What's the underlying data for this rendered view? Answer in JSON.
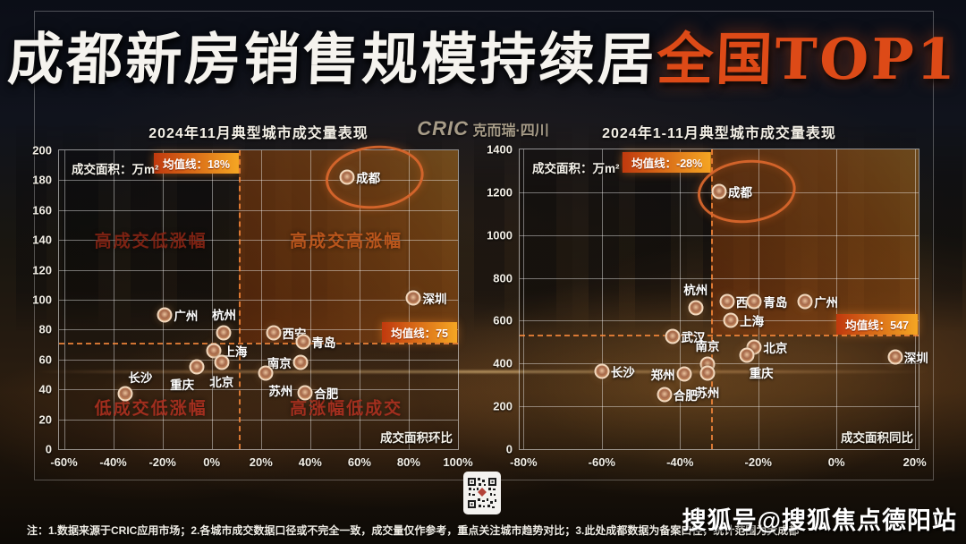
{
  "page": {
    "title_white": "成都新房销售规模持续居",
    "title_orange": "全国TOP1"
  },
  "logo": {
    "brand": "CRIC",
    "name": "克而瑞·四川"
  },
  "footer": {
    "note": "注：1.数据来源于CRIC应用市场；2.各城市成交数据口径或不完全一致，成交量仅作参考，重点关注城市趋势对比；3.此处成都数据为备案口径，统计范围为大成都",
    "watermark": "搜狐号@搜狐焦点德阳站"
  },
  "colors": {
    "title_orange": "#dd4a17",
    "badge_gradient_start": "#c0390e",
    "badge_gradient_end": "#f5a623",
    "mean_line": "#ff8c3c",
    "marker_ring": "#f2d8bd",
    "quadrant_dark_red": "#8a2413",
    "quadrant_orange": "#c65a1d",
    "quadrant_red": "#b03020"
  },
  "chart_data": [
    {
      "type": "scatter",
      "title": "2024年11月典型城市成交量表现",
      "unit_label": "成交面积：万m²",
      "xlabel": "成交面积环比",
      "ylabel": "成交面积（万m²）",
      "xlim": [
        -62,
        100
      ],
      "ylim": [
        0,
        200
      ],
      "x_ticks": [
        -60,
        -40,
        -20,
        0,
        20,
        40,
        60,
        80,
        100
      ],
      "y_ticks": [
        0,
        20,
        40,
        60,
        80,
        100,
        120,
        140,
        160,
        180,
        200
      ],
      "grid": true,
      "legend": "none",
      "mean_v": {
        "label": "均值线：18%",
        "x": 11
      },
      "mean_h": {
        "label": "均值线：75",
        "y": 71
      },
      "quadrants": [
        {
          "text": "高成交低涨幅",
          "left": 23,
          "top": 30,
          "color": "#8a2413"
        },
        {
          "text": "高成交高涨幅",
          "left": 72,
          "top": 30,
          "color": "#c65a1d"
        },
        {
          "text": "低成交低涨幅",
          "left": 23,
          "top": 86,
          "color": "#b03020"
        },
        {
          "text": "高涨幅低成交",
          "left": 72,
          "top": 86,
          "color": "#b03020"
        }
      ],
      "points": [
        {
          "city": "成都",
          "x": 55,
          "y": 182,
          "label_pos": "r",
          "circled": true
        },
        {
          "city": "深圳",
          "x": 82,
          "y": 101,
          "label_pos": "r"
        },
        {
          "city": "广州",
          "x": -19,
          "y": 90,
          "label_pos": "r"
        },
        {
          "city": "杭州",
          "x": 5,
          "y": 78,
          "label_pos": "t"
        },
        {
          "city": "西安",
          "x": 25,
          "y": 78,
          "label_pos": "r"
        },
        {
          "city": "青岛",
          "x": 37,
          "y": 72,
          "label_pos": "r"
        },
        {
          "city": "上海",
          "x": 1,
          "y": 66,
          "label_pos": "r"
        },
        {
          "city": "北京",
          "x": 4,
          "y": 58,
          "label_pos": "b"
        },
        {
          "city": "南京",
          "x": 36,
          "y": 58,
          "label_pos": "l"
        },
        {
          "city": "重庆",
          "x": -6,
          "y": 55,
          "label_pos": "bl"
        },
        {
          "city": "苏州",
          "x": 22,
          "y": 51,
          "label_pos": "br"
        },
        {
          "city": "合肥",
          "x": 38,
          "y": 38,
          "label_pos": "r"
        },
        {
          "city": "长沙",
          "x": -35,
          "y": 37,
          "label_pos": "tr"
        }
      ]
    },
    {
      "type": "scatter",
      "title": "2024年1-11月典型城市成交量表现",
      "unit_label": "成交面积：万m²",
      "xlabel": "成交面积同比",
      "ylabel": "成交面积（万m²）",
      "xlim": [
        -81,
        21
      ],
      "ylim": [
        0,
        1400
      ],
      "x_ticks": [
        -80,
        -60,
        -40,
        -20,
        0,
        20
      ],
      "y_ticks": [
        0,
        200,
        400,
        600,
        800,
        1000,
        1200,
        1400
      ],
      "grid": true,
      "legend": "none",
      "mean_v": {
        "label": "均值线：-28%",
        "x": -32
      },
      "mean_h": {
        "label": "均值线：547",
        "y": 533
      },
      "quadrants": [],
      "points": [
        {
          "city": "成都",
          "x": -30,
          "y": 1205,
          "label_pos": "r",
          "circled": true
        },
        {
          "city": "西安",
          "x": -28,
          "y": 690,
          "label_pos": "r"
        },
        {
          "city": "青岛",
          "x": -21,
          "y": 690,
          "label_pos": "r"
        },
        {
          "city": "广州",
          "x": -8,
          "y": 690,
          "label_pos": "r"
        },
        {
          "city": "杭州",
          "x": -36,
          "y": 660,
          "label_pos": "t"
        },
        {
          "city": "上海",
          "x": -27,
          "y": 600,
          "label_pos": "r"
        },
        {
          "city": "武汉",
          "x": -42,
          "y": 525,
          "label_pos": "r"
        },
        {
          "city": "北京",
          "x": -21,
          "y": 475,
          "label_pos": "r"
        },
        {
          "city": "重庆",
          "x": -23,
          "y": 440,
          "label_pos": "br"
        },
        {
          "city": "深圳",
          "x": 15,
          "y": 430,
          "label_pos": "r"
        },
        {
          "city": "南京",
          "x": -33,
          "y": 395,
          "label_pos": "t"
        },
        {
          "city": "长沙",
          "x": -60,
          "y": 365,
          "label_pos": "r"
        },
        {
          "city": "苏州",
          "x": -33,
          "y": 355,
          "label_pos": "b"
        },
        {
          "city": "郑州",
          "x": -39,
          "y": 350,
          "label_pos": "l"
        },
        {
          "city": "合肥",
          "x": -44,
          "y": 255,
          "label_pos": "r"
        }
      ]
    }
  ]
}
